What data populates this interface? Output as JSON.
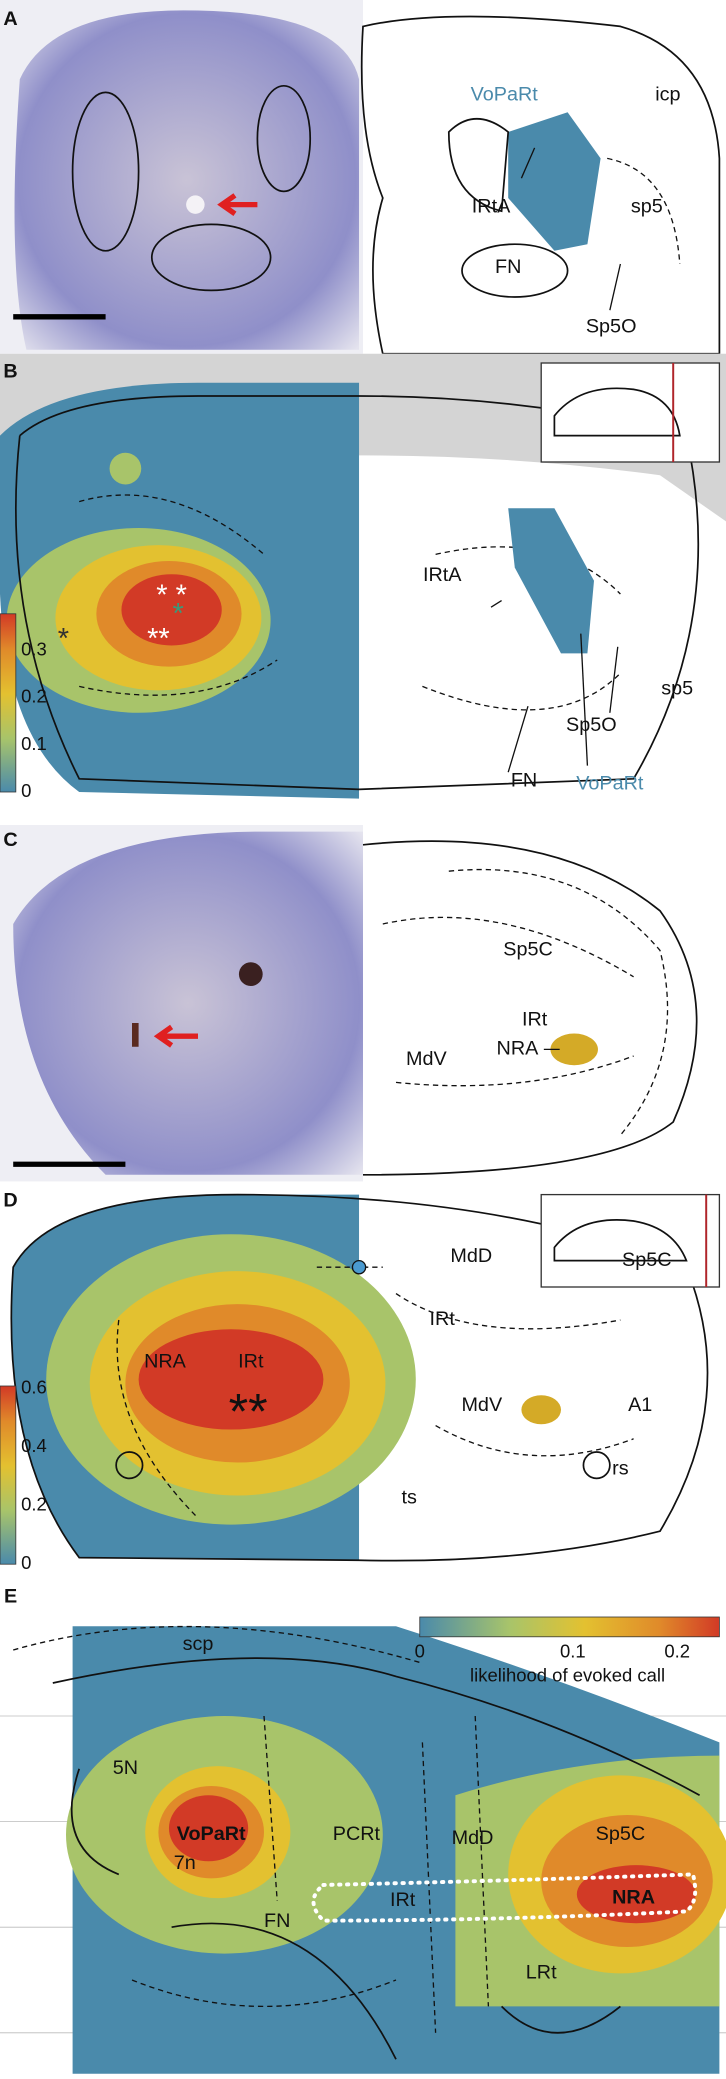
{
  "panels": [
    {
      "letter": "A",
      "labels": [
        "VoPaRt",
        "icp",
        "IRtA",
        "sp5",
        "FN",
        "Sp5O"
      ]
    },
    {
      "letter": "B",
      "labels": [
        "IRtA",
        "sp5",
        "Sp5O",
        "FN",
        "VoPaRt"
      ],
      "colorbar_ticks": [
        0,
        0.1,
        0.2,
        0.3
      ]
    },
    {
      "letter": "C",
      "labels": [
        "Sp5C",
        "IRt",
        "NRA",
        "MdV"
      ]
    },
    {
      "letter": "D",
      "labels": [
        "MdD",
        "Sp5C",
        "IRt",
        "MdV",
        "A1",
        "ts",
        "rs",
        "NRA",
        "IRt"
      ],
      "colorbar_ticks": [
        0,
        0.2,
        0.4,
        0.6
      ]
    },
    {
      "letter": "E",
      "labels": [
        "scp",
        "5N",
        "VoPaRt",
        "7n",
        "PCRt",
        "MdD",
        "IRt",
        "FN",
        "LRt",
        "Sp5C",
        "NRA"
      ],
      "colorbar_ticks": [
        0,
        0.1,
        0.2
      ],
      "colorbar_title": "likelihood of evoked call"
    }
  ]
}
